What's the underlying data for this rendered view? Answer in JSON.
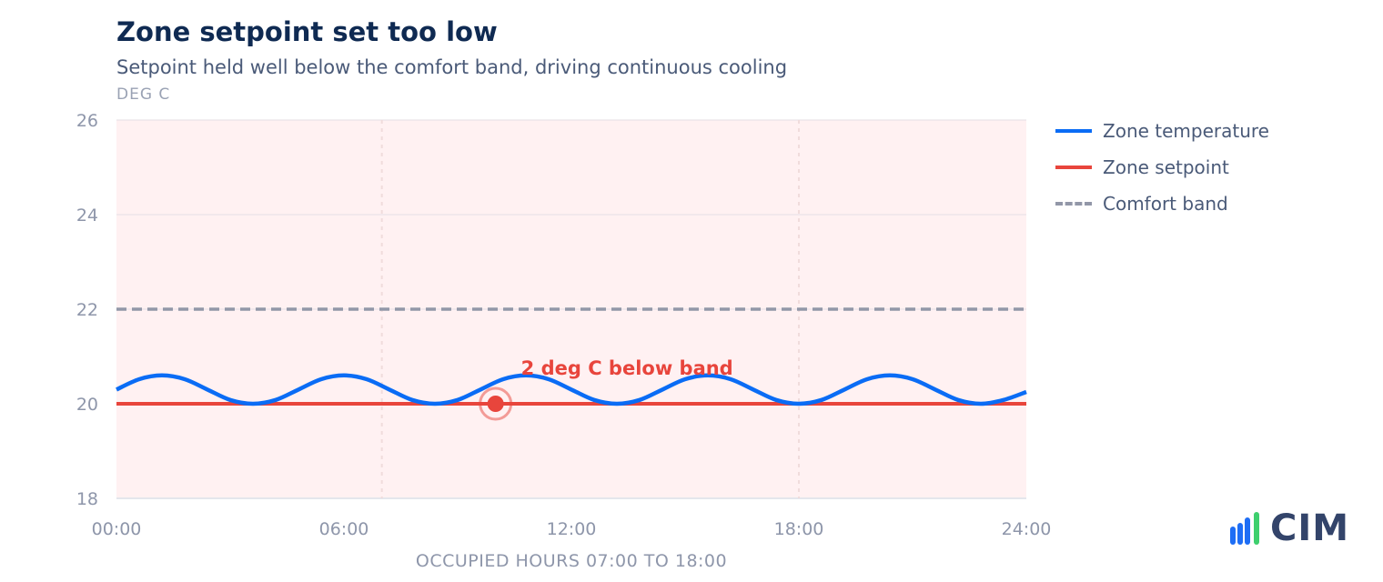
{
  "header": {
    "title": "Zone setpoint set too low",
    "subtitle": "Setpoint held well below the comfort band, driving continuous cooling",
    "unit": "DEG C"
  },
  "colors": {
    "temperature": "#0a6cf5",
    "setpoint": "#e8453c",
    "comfort": "#9297a8",
    "occupied_fill": "#fff1f2",
    "logo_blue": "#1e6ef5",
    "logo_green": "#3ecf6e"
  },
  "chart_data": {
    "type": "line",
    "title": "Zone setpoint set too low",
    "ylabel": "DEG C",
    "xlabel": "OCCUPIED HOURS 07:00 TO 18:00",
    "xlim": [
      0,
      24
    ],
    "ylim": [
      18,
      26
    ],
    "x_ticks": [
      0,
      6,
      12,
      18,
      24
    ],
    "x_tick_labels": [
      "00:00",
      "06:00",
      "12:00",
      "18:00",
      "24:00"
    ],
    "y_ticks": [
      18,
      20,
      22,
      24,
      26
    ],
    "y_tick_labels": [
      "18",
      "20",
      "22",
      "24",
      "26"
    ],
    "grid": "horizontal",
    "legend_position": "right",
    "occupied_hours": [
      7,
      18
    ],
    "series": [
      {
        "name": "Zone temperature",
        "x": [
          0,
          0.6,
          1.2,
          1.8,
          2.4,
          3.0,
          3.6,
          4.2,
          4.8,
          5.4,
          6.0,
          6.6,
          7.2,
          7.8,
          8.4,
          9.0,
          9.6,
          10.2,
          10.8,
          11.4,
          12.0,
          12.6,
          13.2,
          13.8,
          14.4,
          15.0,
          15.6,
          16.2,
          16.8,
          17.4,
          18.0,
          18.6,
          19.2,
          19.8,
          20.4,
          21.0,
          21.6,
          22.2,
          22.8,
          23.4,
          24.0
        ],
        "values": [
          20.3,
          20.52,
          20.6,
          20.52,
          20.3,
          20.08,
          20.0,
          20.08,
          20.3,
          20.52,
          20.6,
          20.52,
          20.3,
          20.08,
          20.0,
          20.08,
          20.3,
          20.52,
          20.6,
          20.52,
          20.3,
          20.08,
          20.0,
          20.08,
          20.3,
          20.52,
          20.6,
          20.52,
          20.3,
          20.08,
          20.0,
          20.08,
          20.3,
          20.52,
          20.6,
          20.52,
          20.3,
          20.08,
          20.0,
          20.08,
          20.25
        ]
      },
      {
        "name": "Zone setpoint",
        "x": [
          0,
          24
        ],
        "values": [
          20,
          20
        ]
      },
      {
        "name": "Comfort band",
        "x": [
          0,
          24
        ],
        "values": [
          22,
          22
        ],
        "dashed": true
      }
    ],
    "annotation": {
      "text": "2 deg C below band",
      "x": 10,
      "y": 20
    }
  },
  "logo": {
    "text": "CIM"
  }
}
